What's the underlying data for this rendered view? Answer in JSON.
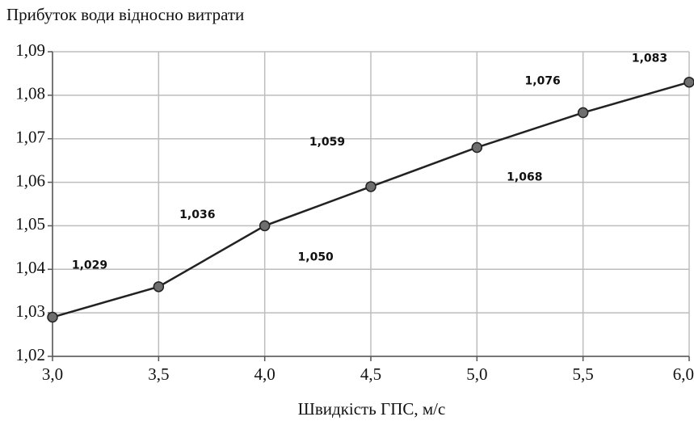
{
  "chart_data": {
    "type": "line",
    "title": "Прибуток води відносно витрати",
    "x_label": "Швидкість ГПС, м/с",
    "x": [
      3.0,
      3.5,
      4.0,
      4.5,
      5.0,
      5.5,
      6.0
    ],
    "values": [
      1.029,
      1.036,
      1.05,
      1.059,
      1.068,
      1.076,
      1.083
    ],
    "value_labels": [
      "1,029",
      "1,036",
      "1,050",
      "1,059",
      "1,068",
      "1,076",
      "1,083"
    ],
    "color": "#222222",
    "marker_color": "#6e6e6e",
    "xlim": [
      3.0,
      6.0
    ],
    "xticks": [
      {
        "value": 3.0,
        "label": "3,0"
      },
      {
        "value": 3.5,
        "label": "3,5"
      },
      {
        "value": 4.0,
        "label": "4,0"
      },
      {
        "value": 4.5,
        "label": "4,5"
      },
      {
        "value": 5.0,
        "label": "5,0"
      },
      {
        "value": 5.5,
        "label": "5,5"
      },
      {
        "value": 6.0,
        "label": "6,0"
      }
    ],
    "ylim": [
      1.02,
      1.09
    ],
    "yticks": [
      {
        "value": 1.02,
        "label": "1,02"
      },
      {
        "value": 1.03,
        "label": "1,03"
      },
      {
        "value": 1.04,
        "label": "1,04"
      },
      {
        "value": 1.05,
        "label": "1,05"
      },
      {
        "value": 1.06,
        "label": "1,06"
      },
      {
        "value": 1.07,
        "label": "1,07"
      },
      {
        "value": 1.08,
        "label": "1,08"
      },
      {
        "value": 1.09,
        "label": "1,09"
      }
    ],
    "grid": true
  }
}
